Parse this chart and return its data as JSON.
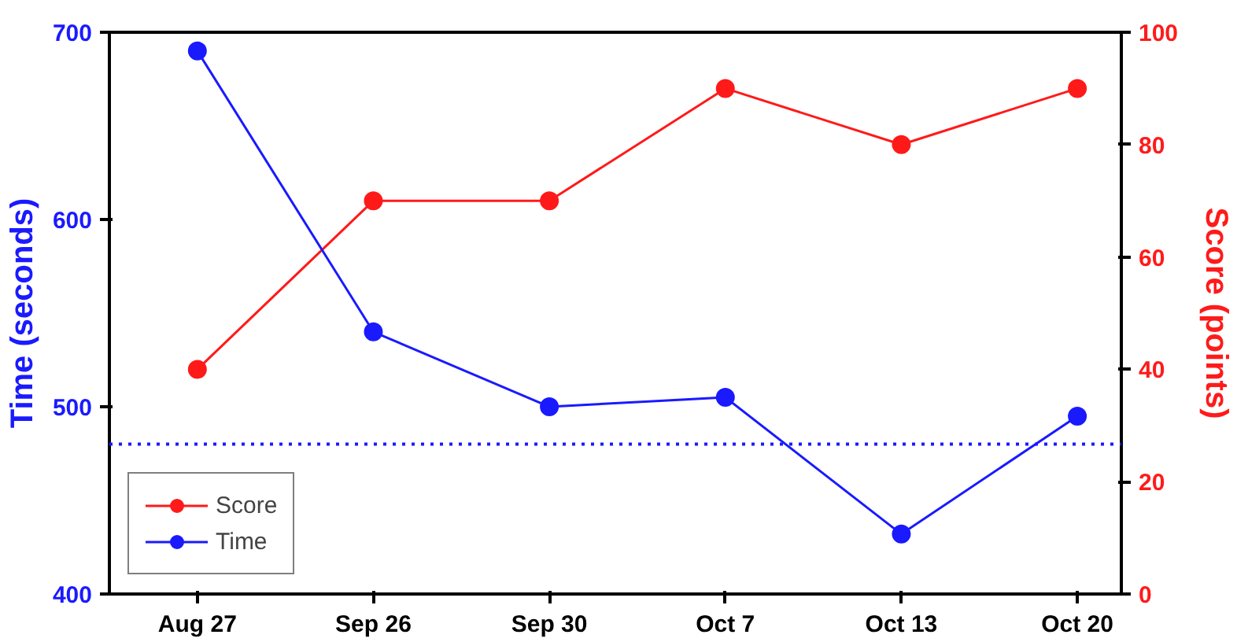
{
  "chart_data": {
    "type": "line",
    "categories": [
      "Aug 27",
      "Sep 26",
      "Sep 30",
      "Oct 7",
      "Oct 13",
      "Oct 20"
    ],
    "ylabel": "Time (seconds)",
    "y2label": "Score (points)",
    "series": [
      {
        "name": "Score",
        "color": "#ff1a1a",
        "axis": "y2",
        "values": [
          40,
          70,
          70,
          90,
          80,
          90
        ]
      },
      {
        "name": "Time",
        "color": "#1a1aff",
        "values": [
          690,
          540,
          500,
          505,
          432,
          495
        ]
      }
    ],
    "ylim": [
      400,
      700
    ],
    "yticks": [
      400,
      500,
      600,
      700
    ],
    "y2lim": [
      0,
      100
    ],
    "y2ticks": [
      0,
      20,
      40,
      60,
      80,
      100
    ],
    "ref_lines": [
      {
        "axis": "y",
        "value": 480,
        "color": "#1a1aff",
        "line_style": "dotted"
      }
    ],
    "marker": "circle",
    "line_style": "solid",
    "legend": "bottom left",
    "grid": false
  }
}
